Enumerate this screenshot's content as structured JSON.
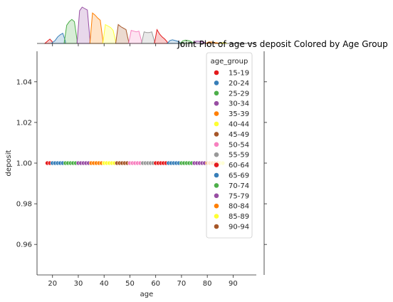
{
  "chart_data": {
    "type": "scatter",
    "title": "Joint Plot of age vs deposit Colored by Age Group",
    "xlabel": "age",
    "ylabel": "deposit",
    "xlim": [
      14,
      99
    ],
    "ylim": [
      0.945,
      1.055
    ],
    "xticks": [
      20,
      30,
      40,
      50,
      60,
      70,
      80,
      90
    ],
    "yticks": [
      0.96,
      0.98,
      1.0,
      1.02,
      1.04
    ],
    "ytick_labels": [
      "0.96",
      "0.98",
      "1.00",
      "1.02",
      "1.04"
    ],
    "grid": false,
    "legend": {
      "title": "age_group",
      "placement": "top-right"
    },
    "series": [
      {
        "name": "15-19",
        "color": "#e41a1c",
        "x": [
          18,
          19
        ],
        "y": [
          1,
          1
        ]
      },
      {
        "name": "20-24",
        "color": "#377eb8",
        "x": [
          20,
          21,
          22,
          23,
          24
        ],
        "y": [
          1,
          1,
          1,
          1,
          1
        ]
      },
      {
        "name": "25-29",
        "color": "#4daf4a",
        "x": [
          25,
          26,
          27,
          28,
          29
        ],
        "y": [
          1,
          1,
          1,
          1,
          1
        ]
      },
      {
        "name": "30-34",
        "color": "#984ea3",
        "x": [
          30,
          31,
          32,
          33,
          34
        ],
        "y": [
          1,
          1,
          1,
          1,
          1
        ]
      },
      {
        "name": "35-39",
        "color": "#ff7f00",
        "x": [
          35,
          36,
          37,
          38,
          39
        ],
        "y": [
          1,
          1,
          1,
          1,
          1
        ]
      },
      {
        "name": "40-44",
        "color": "#ffff33",
        "x": [
          40,
          41,
          42,
          43,
          44
        ],
        "y": [
          1,
          1,
          1,
          1,
          1
        ]
      },
      {
        "name": "45-49",
        "color": "#a65628",
        "x": [
          45,
          46,
          47,
          48,
          49
        ],
        "y": [
          1,
          1,
          1,
          1,
          1
        ]
      },
      {
        "name": "50-54",
        "color": "#f781bf",
        "x": [
          50,
          51,
          52,
          53,
          54
        ],
        "y": [
          1,
          1,
          1,
          1,
          1
        ]
      },
      {
        "name": "55-59",
        "color": "#999999",
        "x": [
          55,
          56,
          57,
          58,
          59
        ],
        "y": [
          1,
          1,
          1,
          1,
          1
        ]
      },
      {
        "name": "60-64",
        "color": "#e41a1c",
        "x": [
          60,
          61,
          62,
          63,
          64
        ],
        "y": [
          1,
          1,
          1,
          1,
          1
        ]
      },
      {
        "name": "65-69",
        "color": "#377eb8",
        "x": [
          65,
          66,
          67,
          68,
          69
        ],
        "y": [
          1,
          1,
          1,
          1,
          1
        ]
      },
      {
        "name": "70-74",
        "color": "#4daf4a",
        "x": [
          70,
          71,
          72,
          73,
          74
        ],
        "y": [
          1,
          1,
          1,
          1,
          1
        ]
      },
      {
        "name": "75-79",
        "color": "#984ea3",
        "x": [
          75,
          76,
          77,
          78,
          79
        ],
        "y": [
          1,
          1,
          1,
          1,
          1
        ]
      },
      {
        "name": "80-84",
        "color": "#ff7f00",
        "x": [
          80,
          81,
          82,
          83,
          84
        ],
        "y": [
          1,
          1,
          1,
          1,
          1
        ]
      },
      {
        "name": "85-89",
        "color": "#ffff33",
        "x": [
          85,
          86
        ],
        "y": [
          1,
          1
        ]
      },
      {
        "name": "90-94",
        "color": "#a65628",
        "x": [],
        "y": []
      }
    ],
    "marginal_x": {
      "type": "area",
      "description_bins": "density per age bin for each age_group",
      "groups": [
        {
          "name": "15-19",
          "color": "#e41a1c",
          "x": [
            17,
            18,
            19,
            20
          ],
          "y": [
            0,
            0.3,
            0.6,
            0.2
          ]
        },
        {
          "name": "20-24",
          "color": "#377eb8",
          "x": [
            19.5,
            21,
            22,
            23,
            24,
            25
          ],
          "y": [
            0,
            0.4,
            0.9,
            1.2,
            1.4,
            0.3
          ]
        },
        {
          "name": "25-29",
          "color": "#4daf4a",
          "x": [
            24.5,
            25.5,
            26.5,
            27.5,
            28.5,
            29.5
          ],
          "y": [
            0,
            2.5,
            3.0,
            3.3,
            3.0,
            0.5
          ]
        },
        {
          "name": "30-34",
          "color": "#984ea3",
          "x": [
            29.5,
            30.5,
            31.5,
            32.5,
            33.5,
            34.5
          ],
          "y": [
            0,
            4.5,
            5.0,
            4.8,
            4.6,
            0.6
          ]
        },
        {
          "name": "35-39",
          "color": "#ff7f00",
          "x": [
            34.5,
            35.5,
            36.5,
            37.5,
            38.5,
            39.5
          ],
          "y": [
            0,
            4.2,
            3.9,
            3.5,
            3.2,
            0.5
          ]
        },
        {
          "name": "40-44",
          "color": "#ffff33",
          "x": [
            39.5,
            40.5,
            41.5,
            42.5,
            43.5,
            44.5
          ],
          "y": [
            0,
            2.6,
            2.4,
            2.2,
            1.8,
            0.3
          ]
        },
        {
          "name": "45-49",
          "color": "#a65628",
          "x": [
            44.5,
            45.5,
            46.5,
            47.5,
            48.5,
            49.5
          ],
          "y": [
            0,
            2.6,
            2.3,
            2.1,
            1.9,
            0.3
          ]
        },
        {
          "name": "50-54",
          "color": "#f781bf",
          "x": [
            49.5,
            50.5,
            51.5,
            52.5,
            53.5,
            54.5
          ],
          "y": [
            0,
            1.8,
            1.7,
            1.6,
            1.7,
            0.3
          ]
        },
        {
          "name": "55-59",
          "color": "#999999",
          "x": [
            54.5,
            55.5,
            56.5,
            57.5,
            58.5,
            59.5
          ],
          "y": [
            0,
            1.6,
            1.5,
            1.5,
            1.6,
            0.3
          ]
        },
        {
          "name": "60-64",
          "color": "#e41a1c",
          "x": [
            59.5,
            60.5,
            61.5,
            62.5,
            63.5,
            64.5
          ],
          "y": [
            0,
            1.9,
            1.3,
            0.9,
            0.6,
            0.2
          ]
        },
        {
          "name": "65-69",
          "color": "#377eb8",
          "x": [
            64.5,
            65.5,
            66.5,
            67.5,
            68.5,
            69.5
          ],
          "y": [
            0,
            0.4,
            0.5,
            0.4,
            0.3,
            0.1
          ]
        },
        {
          "name": "70-74",
          "color": "#4daf4a",
          "x": [
            69.5,
            70.5,
            71.5,
            72.5,
            73.5,
            74.5
          ],
          "y": [
            0,
            0.35,
            0.45,
            0.4,
            0.3,
            0.1
          ]
        },
        {
          "name": "75-79",
          "color": "#984ea3",
          "x": [
            74.5,
            75.5,
            76.5,
            77.5,
            78.5,
            79.5
          ],
          "y": [
            0,
            0.3,
            0.3,
            0.25,
            0.2,
            0.05
          ]
        },
        {
          "name": "80-84",
          "color": "#ff7f00",
          "x": [
            79.5,
            80.5,
            81.5,
            82.5,
            83.5,
            84.5
          ],
          "y": [
            0,
            0.2,
            0.2,
            0.15,
            0.1,
            0.05
          ]
        },
        {
          "name": "85-89",
          "color": "#ffff33",
          "x": [
            84.5,
            85.5,
            86.5,
            87.5
          ],
          "y": [
            0,
            0.1,
            0.08,
            0.02
          ]
        }
      ]
    }
  }
}
